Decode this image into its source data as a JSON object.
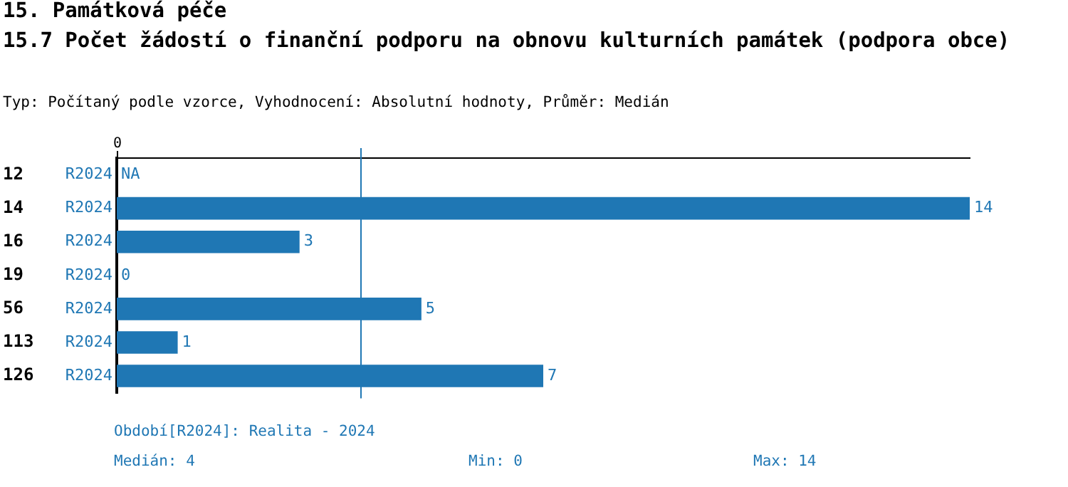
{
  "chart_data": {
    "type": "bar",
    "orientation": "horizontal",
    "title": "15. Památková péče",
    "subtitle": "15.7 Počet žádostí o finanční podporu na obnovu kulturních památek (podpora obce)",
    "annotations": [
      "Typ: Počítaný podle vzorce, Vyhodnocení: Absolutní hodnoty, Průměr: Medián",
      "Období[R2024]: Realita - 2024",
      "Medián: 4",
      "Min: 0",
      "Max: 14",
      "0"
    ],
    "categories": [
      "12",
      "14",
      "16",
      "19",
      "56",
      "113",
      "126"
    ],
    "series": [
      {
        "name": "R2024",
        "color": "#1f77b4",
        "values": [
          null,
          14,
          3,
          0,
          5,
          1,
          7
        ],
        "value_labels": [
          "NA",
          "14",
          "3",
          "0",
          "5",
          "1",
          "7"
        ]
      }
    ],
    "xlim": [
      0,
      14
    ],
    "ref_lines": [
      {
        "axis": "x",
        "value": 4,
        "color": "#1f77b4"
      }
    ],
    "grid": false,
    "legend": false
  }
}
